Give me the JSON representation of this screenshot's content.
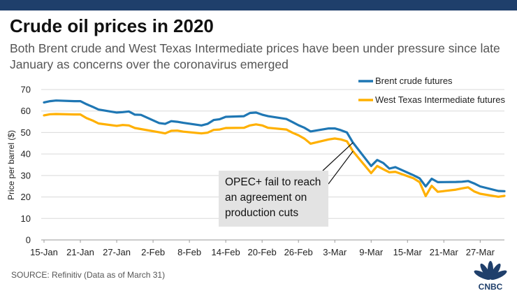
{
  "header": {
    "title": "Crude oil prices in 2020",
    "subtitle": "Both Brent crude and West Texas Intermediate prices have been under pressure since late January as concerns over the coronavirus emerged"
  },
  "footer": {
    "source": "SOURCE: Refinitiv (Data as of March 31)",
    "logo_text": "CNBC"
  },
  "annotation": {
    "text": "OPEC+ fail to reach an agreement on production cuts"
  },
  "colors": {
    "brent": "#1f77b4",
    "wti": "#ffb000",
    "top_bar": "#1f3f6b",
    "annotation_box": "#e3e3e3"
  },
  "chart_data": {
    "type": "line",
    "ylabel": "Price per barrel ($)",
    "xlabel": "",
    "ylim": [
      0,
      70
    ],
    "yticks": [
      0,
      10,
      20,
      30,
      40,
      50,
      60,
      70
    ],
    "xtick_labels": [
      "15-Jan",
      "21-Jan",
      "27-Jan",
      "2-Feb",
      "8-Feb",
      "14-Feb",
      "20-Feb",
      "26-Feb",
      "3-Mar",
      "9-Mar",
      "15-Mar",
      "21-Mar",
      "27-Mar"
    ],
    "grid": "horizontal",
    "legend_position": "top-right",
    "x": [
      "15-Jan",
      "16-Jan",
      "17-Jan",
      "20-Jan",
      "21-Jan",
      "22-Jan",
      "23-Jan",
      "24-Jan",
      "27-Jan",
      "28-Jan",
      "29-Jan",
      "30-Jan",
      "31-Jan",
      "3-Feb",
      "4-Feb",
      "5-Feb",
      "6-Feb",
      "7-Feb",
      "10-Feb",
      "11-Feb",
      "12-Feb",
      "13-Feb",
      "14-Feb",
      "17-Feb",
      "18-Feb",
      "19-Feb",
      "20-Feb",
      "21-Feb",
      "24-Feb",
      "25-Feb",
      "26-Feb",
      "27-Feb",
      "28-Feb",
      "2-Mar",
      "3-Mar",
      "4-Mar",
      "5-Mar",
      "6-Mar",
      "9-Mar",
      "10-Mar",
      "11-Mar",
      "12-Mar",
      "13-Mar",
      "16-Mar",
      "17-Mar",
      "18-Mar",
      "19-Mar",
      "20-Mar",
      "23-Mar",
      "24-Mar",
      "25-Mar",
      "26-Mar",
      "27-Mar",
      "30-Mar",
      "31-Mar"
    ],
    "series": [
      {
        "name": "Brent crude futures",
        "values": [
          64.0,
          64.6,
          64.9,
          64.6,
          64.6,
          63.2,
          62.0,
          60.7,
          59.3,
          59.5,
          59.8,
          58.3,
          58.2,
          54.4,
          54.0,
          55.3,
          55.0,
          54.5,
          53.3,
          54.0,
          55.8,
          56.2,
          57.3,
          57.6,
          59.1,
          59.3,
          58.3,
          57.6,
          56.3,
          54.9,
          53.4,
          52.2,
          50.5,
          51.9,
          51.9,
          51.1,
          50.0,
          45.3,
          34.4,
          37.2,
          35.8,
          33.2,
          33.9,
          30.1,
          28.7,
          24.9,
          28.5,
          26.9,
          27.0,
          27.1,
          27.4,
          26.3,
          24.9,
          22.8,
          22.7
        ]
      },
      {
        "name": "West Texas Intermediate futures",
        "values": [
          58.0,
          58.5,
          58.6,
          58.4,
          58.4,
          56.7,
          55.6,
          54.2,
          53.1,
          53.5,
          53.3,
          52.1,
          51.6,
          50.1,
          49.6,
          50.8,
          50.9,
          50.4,
          49.6,
          49.9,
          51.2,
          51.4,
          52.1,
          52.2,
          53.3,
          53.8,
          53.3,
          52.2,
          51.4,
          49.9,
          48.7,
          47.1,
          44.8,
          46.8,
          47.2,
          46.8,
          45.9,
          41.3,
          31.1,
          34.4,
          32.9,
          31.5,
          31.7,
          28.7,
          26.9,
          20.4,
          25.2,
          22.4,
          23.4,
          24.0,
          24.5,
          22.6,
          21.5,
          20.1,
          20.5
        ]
      }
    ]
  }
}
